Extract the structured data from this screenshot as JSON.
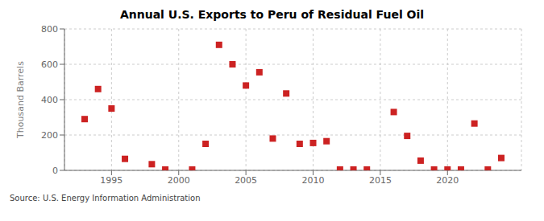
{
  "chart_data": {
    "type": "scatter",
    "title": "Annual U.S. Exports to Peru of Residual Fuel Oil",
    "y_label": "Thousand Barrels",
    "annotations": [
      "Source: U.S. Energy Information Administration"
    ],
    "x": [
      1993,
      1994,
      1995,
      1996,
      1998,
      1999,
      2001,
      2002,
      2003,
      2004,
      2005,
      2006,
      2007,
      2008,
      2009,
      2010,
      2011,
      2012,
      2013,
      2014,
      2016,
      2017,
      2018,
      2019,
      2020,
      2021,
      2022,
      2023,
      2024
    ],
    "values": [
      290,
      460,
      350,
      65,
      35,
      5,
      5,
      150,
      710,
      600,
      480,
      555,
      180,
      435,
      150,
      155,
      165,
      5,
      5,
      5,
      330,
      195,
      55,
      5,
      5,
      5,
      265,
      5,
      70
    ],
    "color": "#cc2222",
    "marker": "square",
    "xlim": [
      1991.5,
      2025.5
    ],
    "ylim": [
      0,
      800
    ],
    "xticks": [
      1995,
      2000,
      2005,
      2010,
      2015,
      2020
    ],
    "yticks": [
      0,
      200,
      400,
      600,
      800
    ],
    "grid": true
  }
}
